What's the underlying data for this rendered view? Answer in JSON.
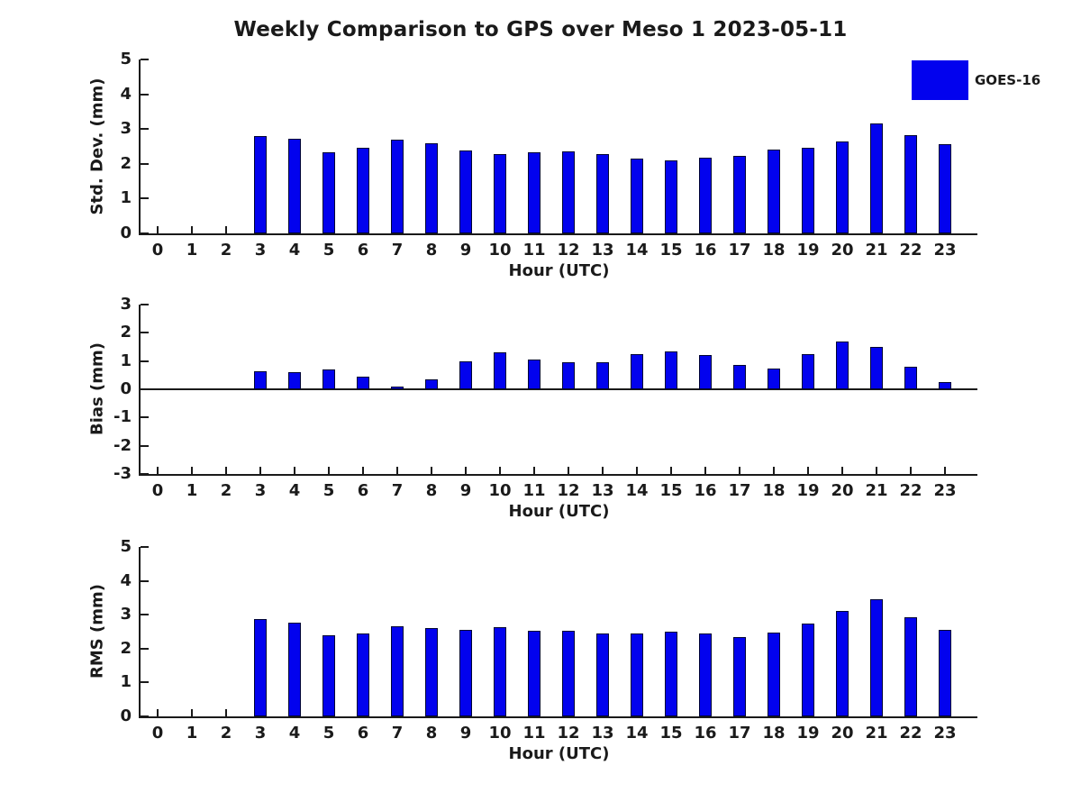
{
  "title": "Weekly Comparison to GPS over Meso 1 2023-05-11",
  "legend": {
    "label": "GOES-16",
    "color": "#0202ee"
  },
  "colors": {
    "bar_fill": "#0202ee",
    "bar_edge": "#000433",
    "axis": "#1a1a1a",
    "text": "#1a1a1a"
  },
  "chart_data": [
    {
      "type": "bar",
      "panel": "std-dev",
      "ylabel": "Std. Dev. (mm)",
      "xlabel": "Hour (UTC)",
      "ylim": [
        0,
        5
      ],
      "yticks": [
        0,
        1,
        2,
        3,
        4,
        5
      ],
      "grid": false,
      "legend_entry": "GOES-16",
      "categories": [
        "0",
        "1",
        "2",
        "3",
        "4",
        "5",
        "6",
        "7",
        "8",
        "9",
        "10",
        "11",
        "12",
        "13",
        "14",
        "15",
        "16",
        "17",
        "18",
        "19",
        "20",
        "21",
        "22",
        "23"
      ],
      "values": [
        null,
        null,
        null,
        2.8,
        2.72,
        2.33,
        2.45,
        2.69,
        2.58,
        2.38,
        2.28,
        2.33,
        2.37,
        2.27,
        2.14,
        2.11,
        2.17,
        2.23,
        2.4,
        2.47,
        2.64,
        3.17,
        2.82,
        2.56
      ]
    },
    {
      "type": "bar",
      "panel": "bias",
      "ylabel": "Bias (mm)",
      "xlabel": "Hour (UTC)",
      "ylim": [
        -3,
        3
      ],
      "yticks": [
        -3,
        -2,
        -1,
        0,
        1,
        2,
        3
      ],
      "grid": false,
      "legend_entry": "GOES-16",
      "categories": [
        "0",
        "1",
        "2",
        "3",
        "4",
        "5",
        "6",
        "7",
        "8",
        "9",
        "10",
        "11",
        "12",
        "13",
        "14",
        "15",
        "16",
        "17",
        "18",
        "19",
        "20",
        "21",
        "22",
        "23"
      ],
      "values": [
        null,
        null,
        null,
        0.65,
        0.6,
        0.7,
        0.45,
        0.1,
        0.35,
        1.0,
        1.3,
        1.05,
        0.95,
        0.95,
        1.25,
        1.35,
        1.2,
        0.85,
        0.75,
        1.25,
        1.7,
        1.5,
        0.8,
        0.25
      ]
    },
    {
      "type": "bar",
      "panel": "rms",
      "ylabel": "RMS (mm)",
      "xlabel": "Hour (UTC)",
      "ylim": [
        0,
        5
      ],
      "yticks": [
        0,
        1,
        2,
        3,
        4,
        5
      ],
      "grid": false,
      "legend_entry": "GOES-16",
      "categories": [
        "0",
        "1",
        "2",
        "3",
        "4",
        "5",
        "6",
        "7",
        "8",
        "9",
        "10",
        "11",
        "12",
        "13",
        "14",
        "15",
        "16",
        "17",
        "18",
        "19",
        "20",
        "21",
        "22",
        "23"
      ],
      "values": [
        null,
        null,
        null,
        2.88,
        2.77,
        2.4,
        2.46,
        2.67,
        2.6,
        2.56,
        2.62,
        2.53,
        2.53,
        2.45,
        2.45,
        2.5,
        2.45,
        2.35,
        2.48,
        2.73,
        3.1,
        3.47,
        2.92,
        2.56
      ]
    }
  ]
}
